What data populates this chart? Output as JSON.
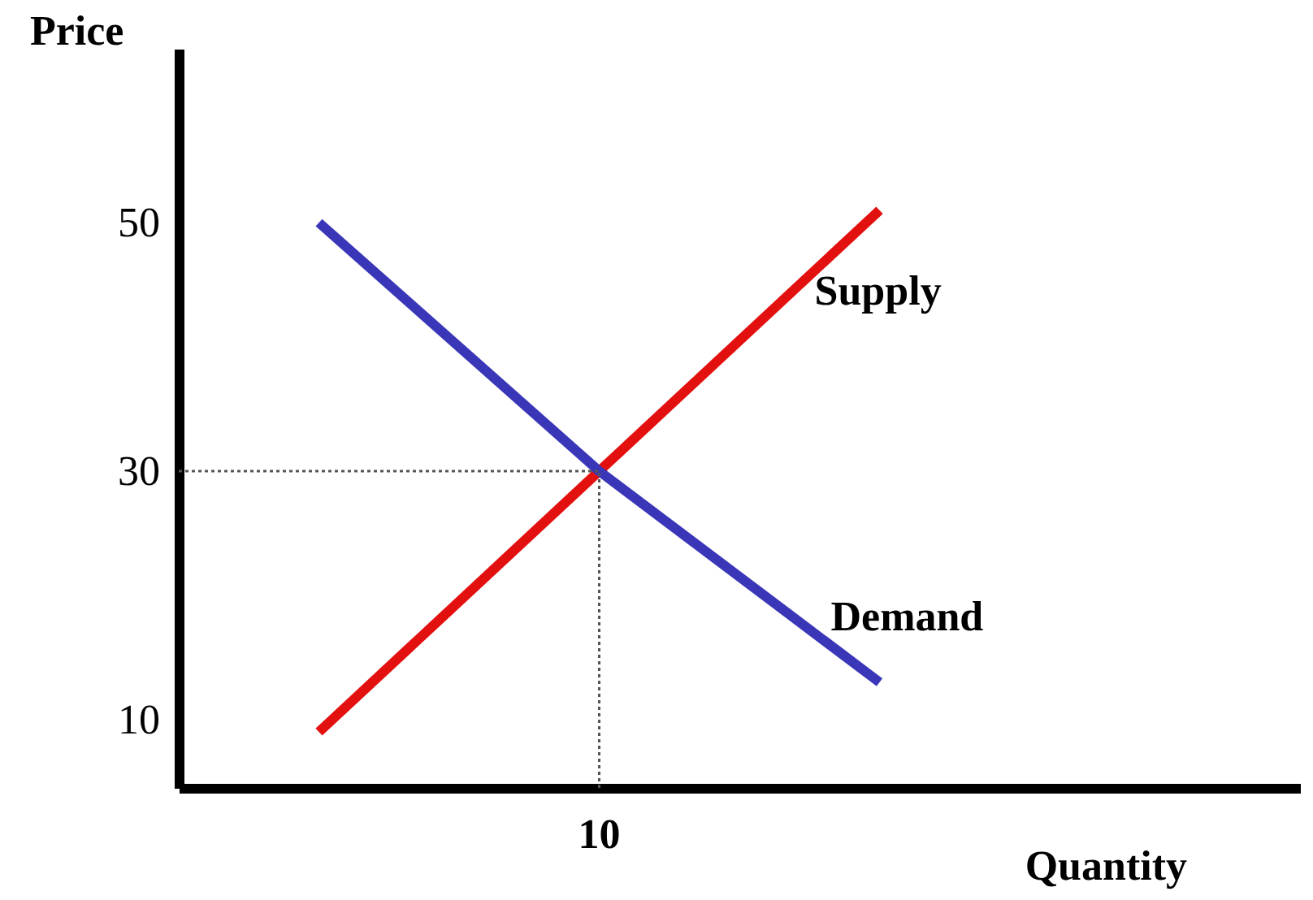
{
  "chart_data": {
    "type": "line",
    "xlabel": "Quantity",
    "ylabel": "Price",
    "categories": [
      null,
      null,
      null
    ],
    "ylim": [
      4.5,
      64
    ],
    "yticks": [
      10,
      30,
      50
    ],
    "grid": false,
    "marker": "none",
    "series": [
      {
        "name": "Supply",
        "color": "#e31010",
        "values": [
          9,
          30,
          51
        ]
      },
      {
        "name": "Demand",
        "color": "#3a36b8",
        "values": [
          50,
          30,
          13
        ]
      }
    ],
    "ref_lines": [
      {
        "axis": "y",
        "value": 30,
        "color": "#555555",
        "line_style": "dotted"
      }
    ],
    "annotations": [
      "10"
    ]
  }
}
